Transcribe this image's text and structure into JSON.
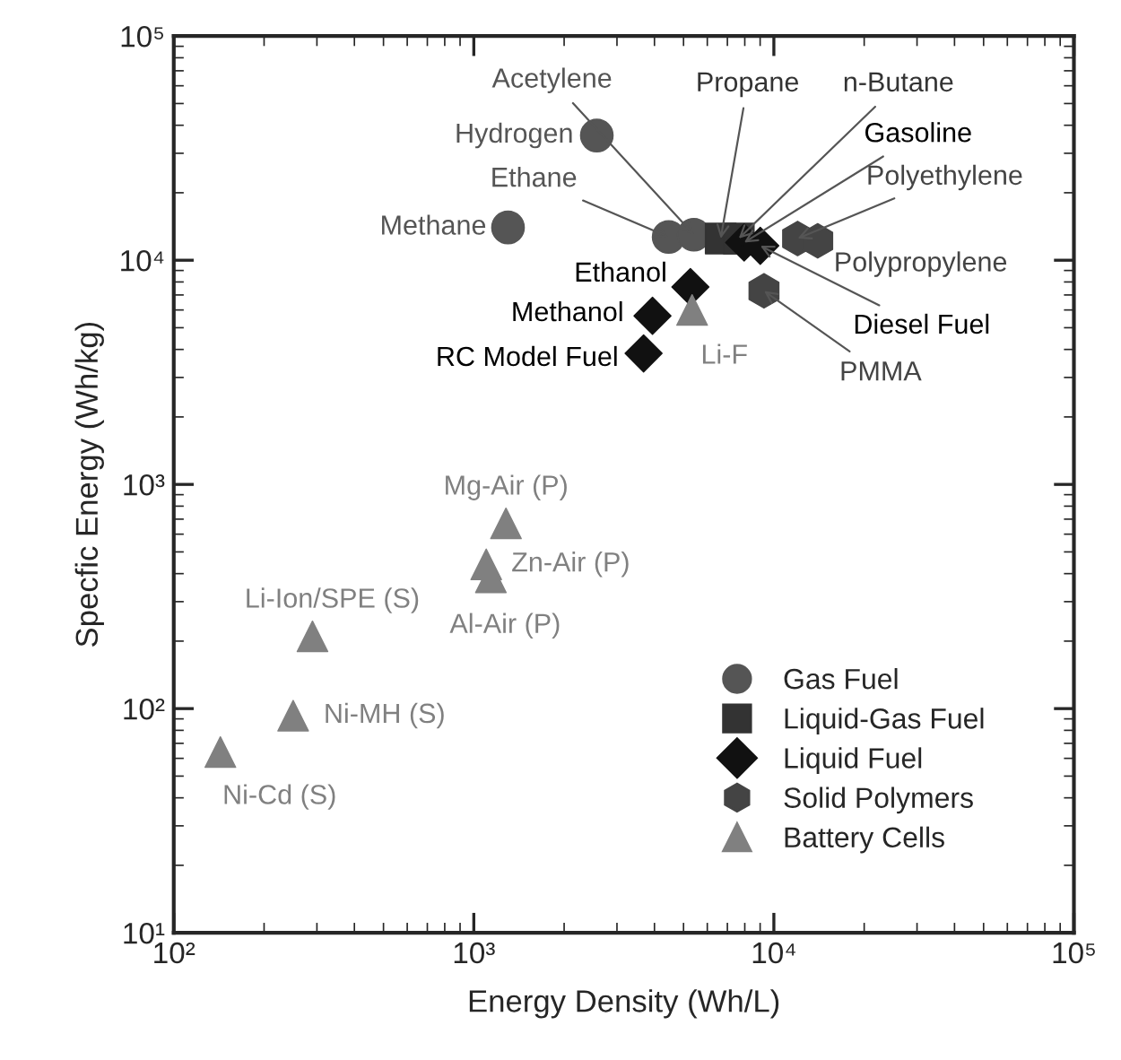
{
  "chart_data": {
    "type": "scatter",
    "xlabel": "Energy Density (Wh/L)",
    "ylabel": "Specfic Energy (Wh/kg)",
    "log": "xy",
    "grid": false,
    "legend": "bottom right",
    "xlim": [
      100,
      100000
    ],
    "ylim": [
      10,
      100000
    ],
    "xticks": [
      {
        "value": 100,
        "label": "10²"
      },
      {
        "value": 1000,
        "label": "10³"
      },
      {
        "value": 10000,
        "label": "10⁴"
      },
      {
        "value": 100000,
        "label": "10⁵"
      }
    ],
    "yticks": [
      {
        "value": 10,
        "label": "10¹"
      },
      {
        "value": 100,
        "label": "10²"
      },
      {
        "value": 1000,
        "label": "10³"
      },
      {
        "value": 10000,
        "label": "10⁴"
      },
      {
        "value": 100000,
        "label": "10⁵"
      }
    ],
    "series": [
      {
        "name": "Gas Fuel",
        "color": "#555555",
        "marker": "circle",
        "x": [
          2570,
          1300,
          4460,
          5410
        ],
        "values": [
          36000,
          14000,
          12700,
          13000
        ]
      },
      {
        "name": "Liquid-Gas Fuel",
        "color": "#333333",
        "marker": "square",
        "x": [
          6650,
          7640
        ],
        "values": [
          12500,
          12500
        ]
      },
      {
        "name": "Liquid Fuel",
        "color": "#111111",
        "marker": "diamond",
        "x": [
          7960,
          9010,
          5270,
          3940,
          3680
        ],
        "values": [
          12000,
          11600,
          7600,
          5650,
          3840
        ]
      },
      {
        "name": "Solid Polymers",
        "color": "#444444",
        "x": [
          12000,
          14000,
          9270
        ],
        "values": [
          12500,
          12200,
          7300
        ]
      },
      {
        "name": "Battery Cells",
        "color": "#808080",
        "marker": "triangle",
        "x": [
          5340,
          1280,
          1100,
          1140,
          290,
          250,
          143
        ],
        "values": [
          6000,
          670,
          440,
          385,
          210,
          93,
          64
        ]
      }
    ],
    "annotations": [
      {
        "text": "Hydrogen",
        "x": 2570,
        "y": 36000
      },
      {
        "text": "Methane",
        "x": 1300,
        "y": 14000
      },
      {
        "text": "Ethane",
        "x": 4460,
        "y": 12700
      },
      {
        "text": "Acetylene",
        "x": 5410,
        "y": 13000
      },
      {
        "text": "Propane",
        "x": 6650,
        "y": 12500
      },
      {
        "text": "n-Butane",
        "x": 7640,
        "y": 12500
      },
      {
        "text": "Gasoline",
        "x": 7960,
        "y": 12000
      },
      {
        "text": "Polyethylene",
        "x": 12000,
        "y": 12500
      },
      {
        "text": "Polypropylene",
        "x": 14000,
        "y": 12200
      },
      {
        "text": "Diesel Fuel",
        "x": 9010,
        "y": 11600
      },
      {
        "text": "PMMA",
        "x": 9270,
        "y": 7300
      },
      {
        "text": "Ethanol",
        "x": 5270,
        "y": 7600
      },
      {
        "text": "Methanol",
        "x": 3940,
        "y": 5650
      },
      {
        "text": "RC Model Fuel",
        "x": 3680,
        "y": 3840
      },
      {
        "text": "Li-F",
        "x": 5340,
        "y": 6000
      },
      {
        "text": "Mg-Air (P)",
        "x": 1280,
        "y": 670
      },
      {
        "text": "Zn-Air (P)",
        "x": 1100,
        "y": 440
      },
      {
        "text": "Al-Air (P)",
        "x": 1140,
        "y": 385
      },
      {
        "text": "Li-Ion/SPE (S)",
        "x": 290,
        "y": 210
      },
      {
        "text": "Ni-MH (S)",
        "x": 250,
        "y": 93
      },
      {
        "text": "Ni-Cd (S)",
        "x": 143,
        "y": 64
      }
    ]
  }
}
